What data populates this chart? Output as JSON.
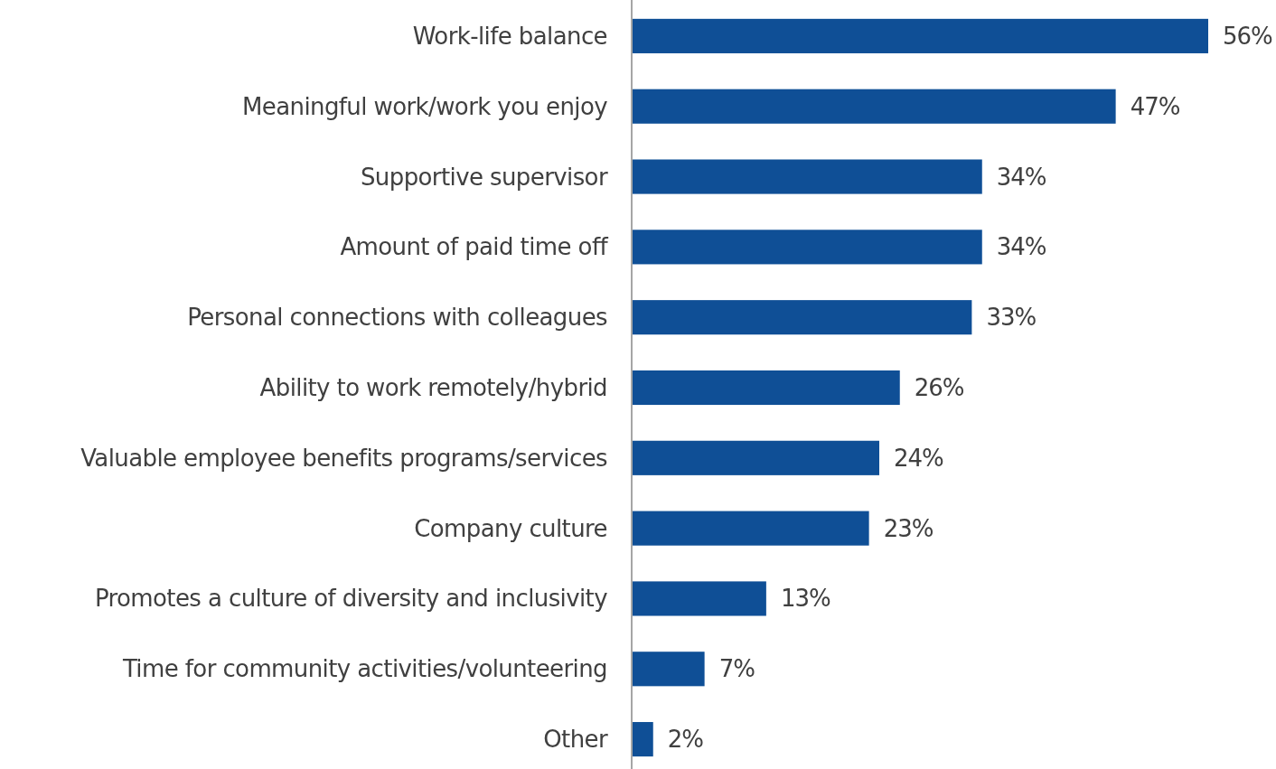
{
  "chart_data": {
    "type": "bar",
    "orientation": "horizontal",
    "categories": [
      "Work-life balance",
      "Meaningful work/work you enjoy",
      "Supportive supervisor",
      "Amount of paid time off",
      "Personal connections with colleagues",
      "Ability to work remotely/hybrid",
      "Valuable employee benefits programs/services",
      "Company culture",
      "Promotes a culture of diversity and inclusivity",
      "Time for community activities/volunteering",
      "Other"
    ],
    "values": [
      56,
      47,
      34,
      34,
      33,
      26,
      24,
      23,
      13,
      7,
      2
    ],
    "value_labels": [
      "56%",
      "47%",
      "34%",
      "34%",
      "33%",
      "26%",
      "24%",
      "23%",
      "13%",
      "7%",
      "2%"
    ],
    "color": "#0f4f96"
  }
}
